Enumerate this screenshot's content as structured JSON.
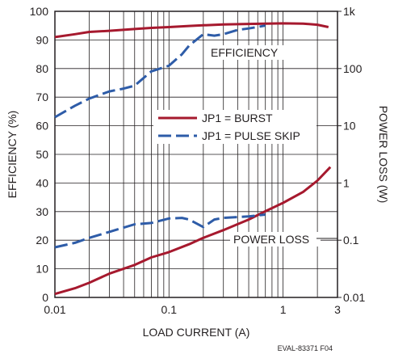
{
  "chart_data": {
    "type": "line",
    "xlabel": "LOAD CURRENT (A)",
    "ylabel_left": "EFFICIENCY (%)",
    "ylabel_right": "POWER LOSS (W)",
    "x_scale": "log",
    "x_range": [
      0.01,
      3
    ],
    "x_ticks": [
      0.01,
      0.1,
      1,
      3
    ],
    "x_tick_labels": [
      "0.01",
      "0.1",
      "1",
      "3"
    ],
    "y_left_range": [
      0,
      100
    ],
    "y_left_ticks": [
      0,
      10,
      20,
      30,
      40,
      50,
      60,
      70,
      80,
      90,
      100
    ],
    "y_left_tick_labels": [
      "0",
      "10",
      "20",
      "30",
      "40",
      "50",
      "60",
      "70",
      "80",
      "90",
      "100"
    ],
    "y_right_scale": "log",
    "y_right_range": [
      0.01,
      1000
    ],
    "y_right_ticks": [
      0.01,
      0.1,
      1,
      10,
      100,
      1000
    ],
    "y_right_tick_labels": [
      "0.01",
      "0.1",
      "1",
      "10",
      "100",
      "1k"
    ],
    "grid": true,
    "legend_position": "center-right",
    "legend": [
      {
        "label": "JP1 = BURST",
        "color": "#a6192e",
        "dash": "solid"
      },
      {
        "label": "JP1 = PULSE SKIP",
        "color": "#2e5ca8",
        "dash": "dashed"
      }
    ],
    "annotations": [
      {
        "text": "EFFICIENCY"
      },
      {
        "text": "POWER LOSS"
      }
    ],
    "figure_id": "EVAL-83371 F04",
    "series": [
      {
        "name": "JP1 = BURST",
        "group": "EFFICIENCY",
        "axis": "left",
        "color": "#a6192e",
        "dash": "solid",
        "x": [
          0.01,
          0.015,
          0.02,
          0.03,
          0.05,
          0.07,
          0.1,
          0.15,
          0.2,
          0.3,
          0.5,
          0.7,
          1.0,
          1.5,
          2.0,
          2.5
        ],
        "y": [
          91,
          92,
          92.8,
          93.2,
          93.8,
          94.2,
          94.5,
          94.9,
          95.1,
          95.4,
          95.6,
          95.7,
          95.8,
          95.7,
          95.3,
          94.5
        ]
      },
      {
        "name": "JP1 = PULSE SKIP",
        "group": "EFFICIENCY",
        "axis": "left",
        "color": "#2e5ca8",
        "dash": "dashed",
        "x": [
          0.01,
          0.015,
          0.02,
          0.03,
          0.04,
          0.05,
          0.07,
          0.1,
          0.13,
          0.15,
          0.2,
          0.25,
          0.3,
          0.4,
          0.5,
          0.7
        ],
        "y": [
          63,
          67,
          69.5,
          72,
          73,
          74,
          79,
          81,
          85,
          88,
          92,
          91.5,
          92,
          93.5,
          94,
          95
        ]
      },
      {
        "name": "JP1 = BURST",
        "group": "POWER LOSS",
        "axis": "right",
        "color": "#a6192e",
        "dash": "solid",
        "x": [
          0.01,
          0.015,
          0.02,
          0.03,
          0.05,
          0.07,
          0.1,
          0.15,
          0.2,
          0.3,
          0.5,
          0.7,
          1.0,
          1.5,
          2.0,
          2.6
        ],
        "y": [
          0.0115,
          0.0145,
          0.018,
          0.026,
          0.037,
          0.05,
          0.062,
          0.085,
          0.11,
          0.15,
          0.23,
          0.32,
          0.45,
          0.7,
          1.1,
          1.9
        ]
      },
      {
        "name": "JP1 = PULSE SKIP",
        "group": "POWER LOSS",
        "axis": "right",
        "color": "#2e5ca8",
        "dash": "dashed",
        "x": [
          0.01,
          0.015,
          0.02,
          0.03,
          0.05,
          0.07,
          0.1,
          0.13,
          0.15,
          0.2,
          0.25,
          0.3,
          0.5,
          0.7
        ],
        "y": [
          0.075,
          0.09,
          0.11,
          0.14,
          0.19,
          0.2,
          0.24,
          0.245,
          0.23,
          0.17,
          0.23,
          0.245,
          0.26,
          0.28
        ]
      }
    ]
  }
}
